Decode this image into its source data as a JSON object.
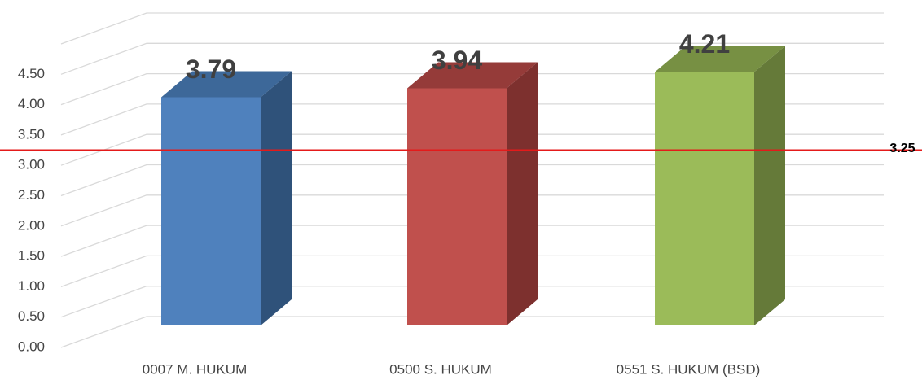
{
  "chart_data": {
    "type": "bar3d",
    "categories": [
      "0007 M. HUKUM",
      "0500 S. HUKUM",
      "0551 S. HUKUM (BSD)"
    ],
    "values": [
      3.79,
      3.94,
      4.21
    ],
    "colors": [
      "#4f81bd",
      "#c0504d",
      "#9bbb59"
    ],
    "side_colors": [
      "#2f527a",
      "#7d302e",
      "#657a39"
    ],
    "top_colors": [
      "#3d6899",
      "#953b39",
      "#779043"
    ],
    "ylim": [
      0,
      5
    ],
    "yticks": [
      {
        "value": 0,
        "label": "0.00"
      },
      {
        "value": 0.5,
        "label": "0.50"
      },
      {
        "value": 1,
        "label": "1.00"
      },
      {
        "value": 1.5,
        "label": "1.50"
      },
      {
        "value": 2,
        "label": "2.00"
      },
      {
        "value": 2.5,
        "label": "2.50"
      },
      {
        "value": 3,
        "label": "3.00"
      },
      {
        "value": 3.5,
        "label": "3.50"
      },
      {
        "value": 4,
        "label": "4.00"
      },
      {
        "value": 4.5,
        "label": "4.50"
      }
    ],
    "grid": true,
    "reference_line": {
      "value": 3.25,
      "color": "#e41a1a"
    }
  }
}
